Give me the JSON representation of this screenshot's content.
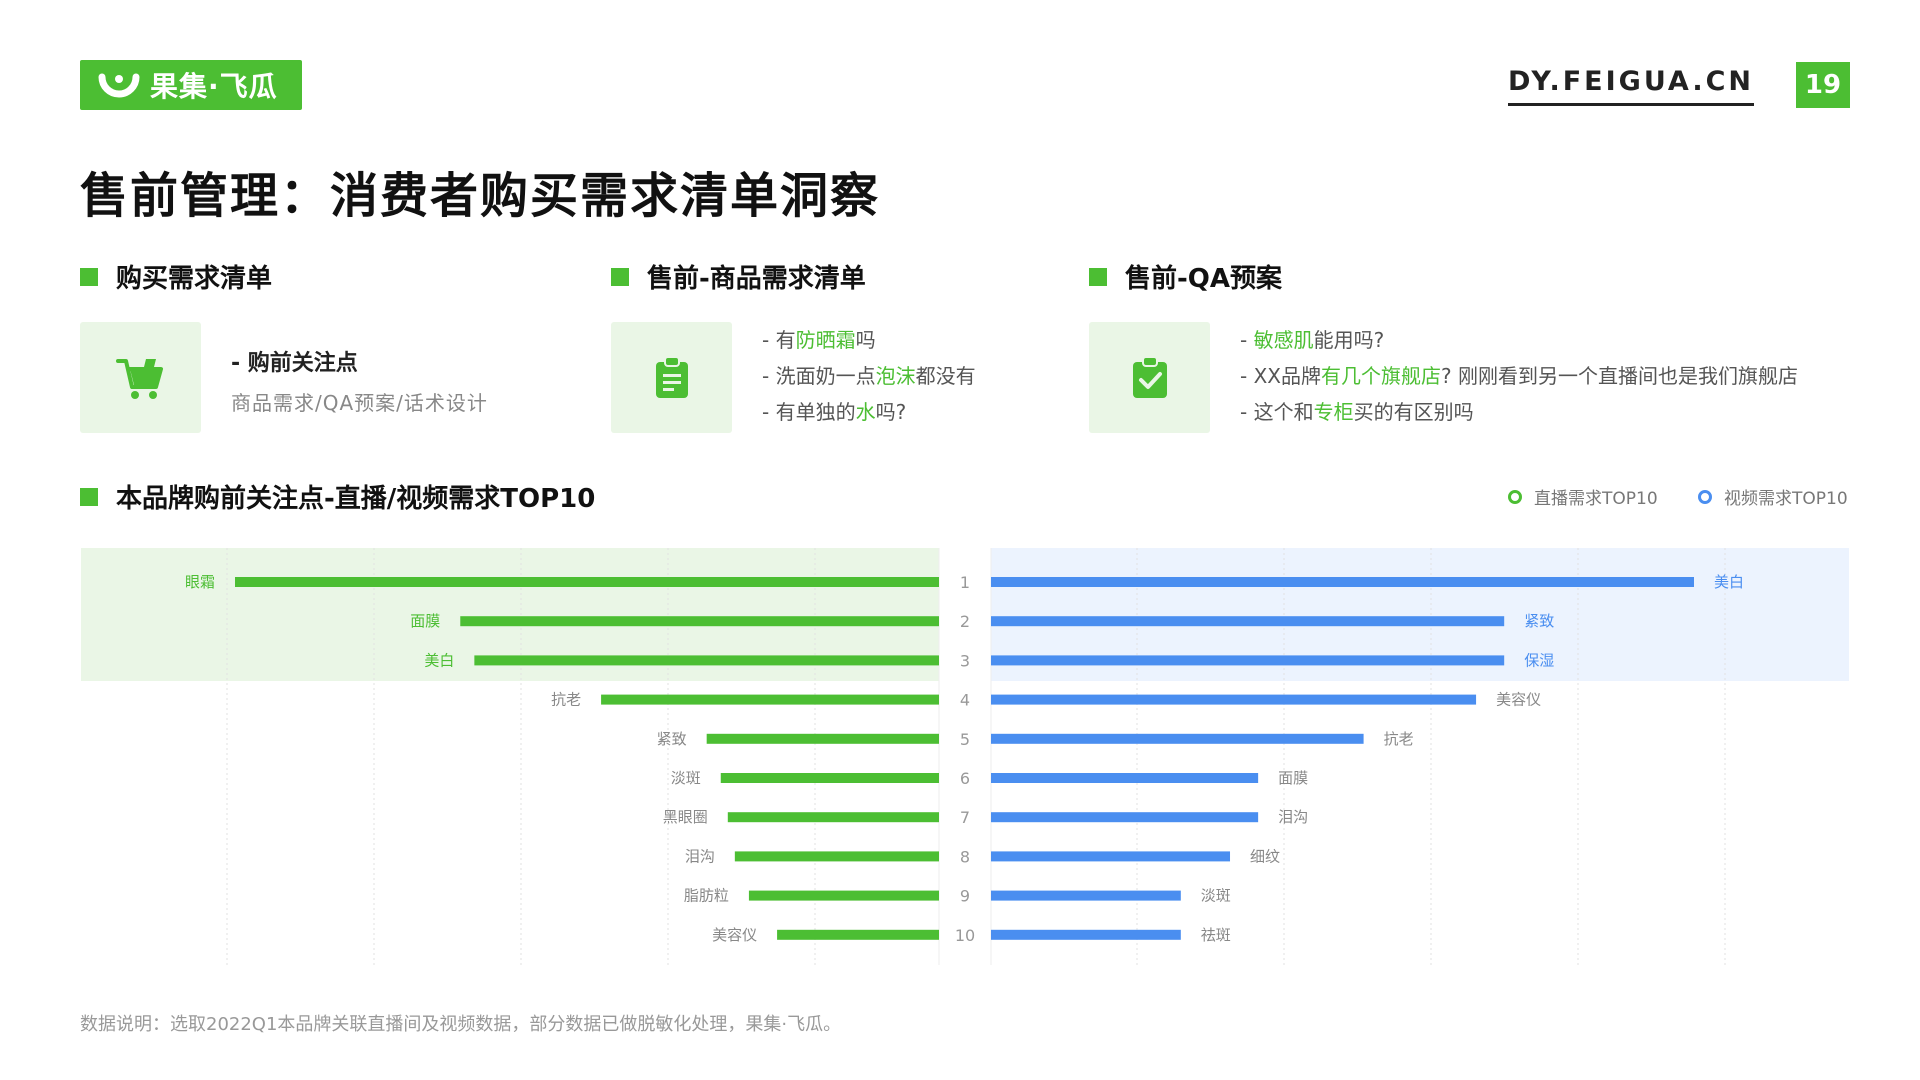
{
  "logo": {
    "text": "果集·飞瓜"
  },
  "site_url": "DY.FEIGUA.CN",
  "page_number": "19",
  "page_title": "售前管理：消费者购买需求清单洞察",
  "colors": {
    "green": "#4cbe33",
    "blue": "#4a8ef0",
    "green_bg": "#eaf6e6",
    "blue_bg": "#ecf3fe"
  },
  "sections": {
    "purchase_list": {
      "title": "购买需求清单",
      "icon": "shopping-cart-icon",
      "head": "- 购前关注点",
      "sub": "商品需求/QA预案/话术设计"
    },
    "product_list": {
      "title": "售前-商品需求清单",
      "icon": "clipboard-list-icon",
      "lines": [
        {
          "pre": "- 有",
          "hl": "防晒霜",
          "post": "吗"
        },
        {
          "pre": "- 洗面奶一点",
          "hl": "泡沫",
          "post": "都没有"
        },
        {
          "pre": "- 有单独的",
          "hl": "水",
          "post": "吗?"
        }
      ]
    },
    "qa_plan": {
      "title": "售前-QA预案",
      "icon": "clipboard-check-icon",
      "lines": [
        {
          "pre": "- ",
          "hl": "敏感肌",
          "post": "能用吗?"
        },
        {
          "pre": "- XX品牌",
          "hl": "有几个旗舰店",
          "post": "? 刚刚看到另一个直播间也是我们旗舰店"
        },
        {
          "pre": "- 这个和",
          "hl": "专柜",
          "post": "买的有区别吗"
        }
      ]
    }
  },
  "chart_section": {
    "title": "本品牌购前关注点-直播/视频需求TOP10"
  },
  "legend": {
    "live": "直播需求TOP10",
    "video": "视频需求TOP10"
  },
  "chart_data": {
    "type": "bar",
    "ranks": [
      "1",
      "2",
      "3",
      "4",
      "5",
      "6",
      "7",
      "8",
      "9",
      "10"
    ],
    "series": [
      {
        "name": "直播需求TOP10",
        "categories": [
          "眼霜",
          "面膜",
          "美白",
          "抗老",
          "紧致",
          "淡斑",
          "黑眼圈",
          "泪沟",
          "脂肪粒",
          "美容仪"
        ],
        "values": [
          100,
          68,
          66,
          48,
          33,
          31,
          30,
          29,
          27,
          23
        ]
      },
      {
        "name": "视频需求TOP10",
        "categories": [
          "美白",
          "紧致",
          "保湿",
          "美容仪",
          "抗老",
          "面膜",
          "泪沟",
          "细纹",
          "淡斑",
          "祛斑"
        ],
        "values": [
          100,
          73,
          73,
          69,
          53,
          38,
          38,
          34,
          27,
          27
        ]
      }
    ],
    "highlight_top": 3
  },
  "footnote": "数据说明：选取2022Q1本品牌关联直播间及视频数据，部分数据已做脱敏化处理，果集·飞瓜。"
}
